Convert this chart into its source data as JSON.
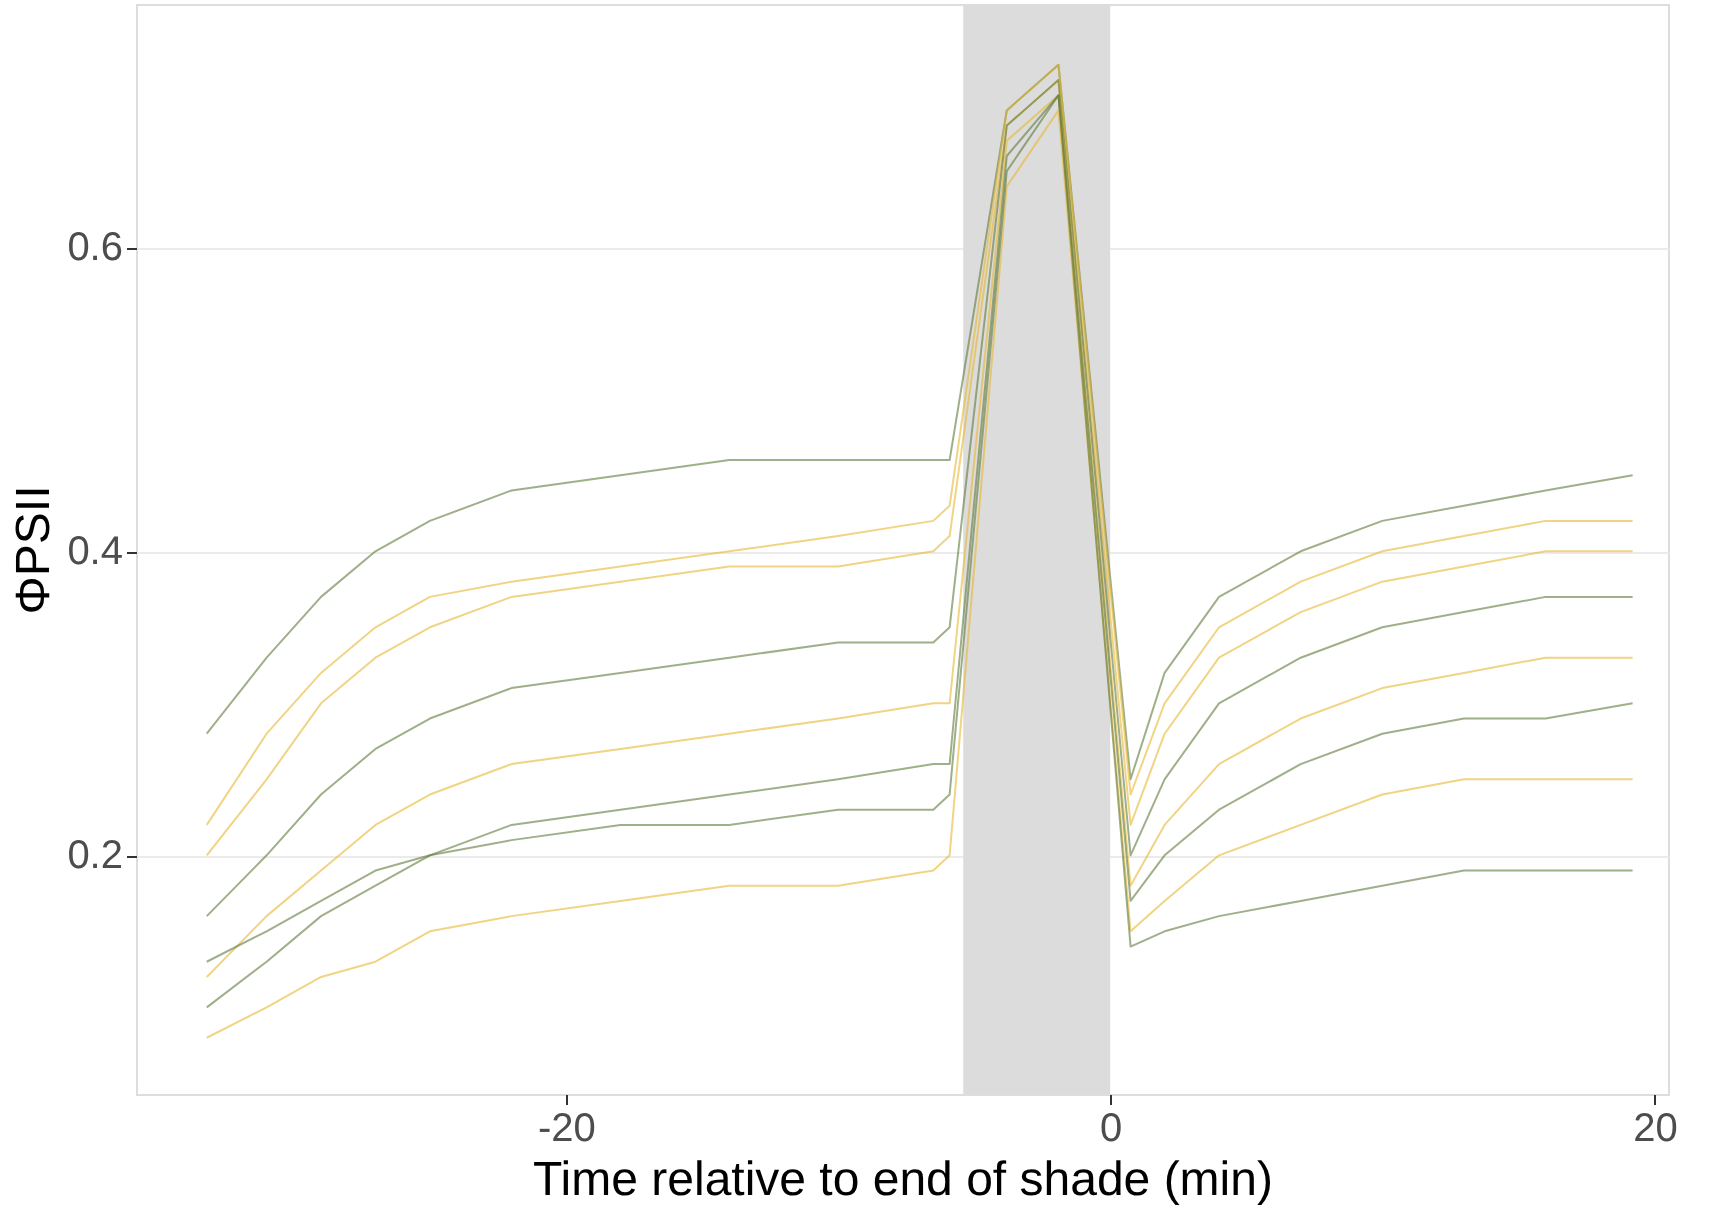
{
  "chart_data": {
    "type": "line",
    "xlabel": "Time relative to end of shade (min)",
    "ylabel": "ΦPSII",
    "x": [
      -33.2,
      -31,
      -29,
      -27,
      -25,
      -22,
      -18,
      -14,
      -10,
      -6.5,
      -5.9,
      -3.8,
      -1.9,
      0.75,
      2,
      4,
      7,
      10,
      13,
      16,
      19.2
    ],
    "series": [
      {
        "color": "#5f7a3a",
        "values": [
          0.28,
          0.33,
          0.37,
          0.4,
          0.42,
          0.44,
          0.45,
          0.46,
          0.46,
          0.46,
          0.46,
          0.69,
          0.72,
          0.25,
          0.32,
          0.37,
          0.4,
          0.42,
          0.43,
          0.44,
          0.45
        ]
      },
      {
        "color": "#e8b730",
        "values": [
          0.2,
          0.25,
          0.3,
          0.33,
          0.35,
          0.37,
          0.38,
          0.39,
          0.39,
          0.4,
          0.41,
          0.68,
          0.71,
          0.22,
          0.28,
          0.33,
          0.36,
          0.38,
          0.39,
          0.4,
          0.4
        ]
      },
      {
        "color": "#5f7a3a",
        "values": [
          0.16,
          0.2,
          0.24,
          0.27,
          0.29,
          0.31,
          0.32,
          0.33,
          0.34,
          0.34,
          0.35,
          0.68,
          0.71,
          0.2,
          0.25,
          0.3,
          0.33,
          0.35,
          0.36,
          0.37,
          0.37
        ]
      },
      {
        "color": "#e8b730",
        "values": [
          0.12,
          0.16,
          0.19,
          0.22,
          0.24,
          0.26,
          0.27,
          0.28,
          0.29,
          0.3,
          0.3,
          0.67,
          0.7,
          0.18,
          0.22,
          0.26,
          0.29,
          0.31,
          0.32,
          0.33,
          0.33
        ]
      },
      {
        "color": "#5f7a3a",
        "values": [
          0.1,
          0.13,
          0.16,
          0.18,
          0.2,
          0.22,
          0.23,
          0.24,
          0.25,
          0.26,
          0.26,
          0.66,
          0.7,
          0.17,
          0.2,
          0.23,
          0.26,
          0.28,
          0.29,
          0.29,
          0.3
        ]
      },
      {
        "color": "#e8b730",
        "values": [
          0.08,
          0.1,
          0.12,
          0.13,
          0.15,
          0.16,
          0.17,
          0.18,
          0.18,
          0.19,
          0.2,
          0.64,
          0.69,
          0.15,
          0.17,
          0.2,
          0.22,
          0.24,
          0.25,
          0.25,
          0.25
        ]
      },
      {
        "color": "#5f7a3a",
        "values": [
          0.13,
          0.15,
          0.17,
          0.19,
          0.2,
          0.21,
          0.22,
          0.22,
          0.23,
          0.23,
          0.24,
          0.65,
          0.7,
          0.14,
          0.15,
          0.16,
          0.17,
          0.18,
          0.19,
          0.19,
          0.19
        ]
      },
      {
        "color": "#e8b730",
        "values": [
          0.22,
          0.28,
          0.32,
          0.35,
          0.37,
          0.38,
          0.39,
          0.4,
          0.41,
          0.42,
          0.43,
          0.69,
          0.72,
          0.24,
          0.3,
          0.35,
          0.38,
          0.4,
          0.41,
          0.42,
          0.42
        ]
      }
    ],
    "xlim": [
      -35.8,
      20.5
    ],
    "xticks": [
      -20,
      0,
      20
    ],
    "ylim": [
      0.043,
      0.76
    ],
    "yticks": [
      0.2,
      0.4,
      0.6
    ],
    "bands": [
      {
        "axis": "x",
        "from": -5.4,
        "to": 0,
        "color": "#dcdcdc"
      }
    ],
    "grid": "y",
    "legend": false,
    "line_style": "solid"
  }
}
